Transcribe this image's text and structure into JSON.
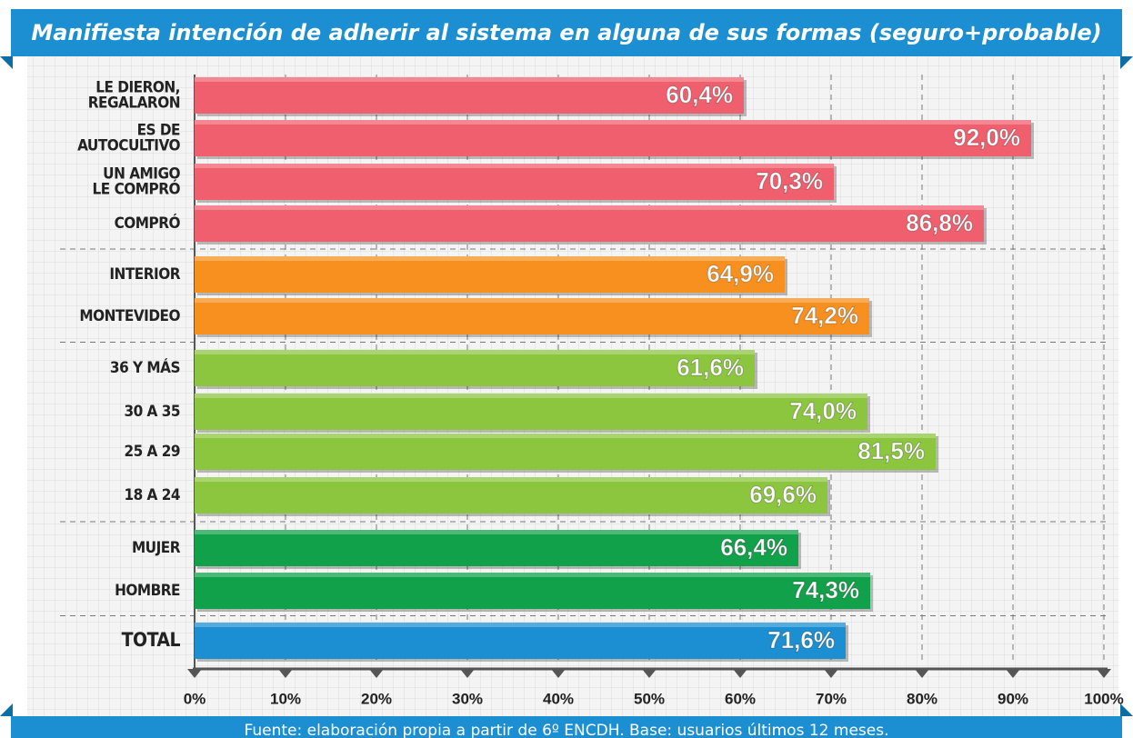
{
  "chart_data": {
    "type": "bar",
    "orientation": "horizontal",
    "title": "Manifiesta intención de adherir al sistema en alguna de sus formas (seguro+probable)",
    "footer": "Fuente: elaboración propia a partir de 6º ENCDH. Base: usuarios últimos 12 meses.",
    "categories": [
      "LE DIERON,\nREGALARON",
      "ES DE\nAUTOCULTIVO",
      "UN AMIGO\nLE COMPRÓ",
      "COMPRÓ",
      "INTERIOR",
      "MONTEVIDEO",
      "36 Y MÁS",
      "30 A 35",
      "25 A 29",
      "18 A 24",
      "MUJER",
      "HOMBRE",
      "TOTAL"
    ],
    "values": [
      60.4,
      92.0,
      70.3,
      86.8,
      64.9,
      74.2,
      61.6,
      74.0,
      81.5,
      69.6,
      66.4,
      74.3,
      71.6
    ],
    "value_labels": [
      "60,4%",
      "92,0%",
      "70,3%",
      "86,8%",
      "64,9%",
      "74,2%",
      "61,6%",
      "74,0%",
      "81,5%",
      "69,6%",
      "66,4%",
      "74,3%",
      "71,6%"
    ],
    "colors": [
      "#ef5f6e",
      "#ef5f6e",
      "#ef5f6e",
      "#ef5f6e",
      "#f7901e",
      "#f7901e",
      "#8cc63f",
      "#8cc63f",
      "#8cc63f",
      "#8cc63f",
      "#12a14b",
      "#12a14b",
      "#1b8fd2"
    ],
    "xlim": [
      0,
      100
    ],
    "xticks": [
      {
        "value": 0,
        "label": "0%"
      },
      {
        "value": 10,
        "label": "10%"
      },
      {
        "value": 20,
        "label": "20%"
      },
      {
        "value": 30,
        "label": "30%"
      },
      {
        "value": 40,
        "label": "40%"
      },
      {
        "value": 50,
        "label": "50%"
      },
      {
        "value": 60,
        "label": "60%"
      },
      {
        "value": 70,
        "label": "70%"
      },
      {
        "value": 80,
        "label": "80%"
      },
      {
        "value": 90,
        "label": "90%"
      },
      {
        "value": 100,
        "label": "100%"
      }
    ],
    "grid": true
  }
}
